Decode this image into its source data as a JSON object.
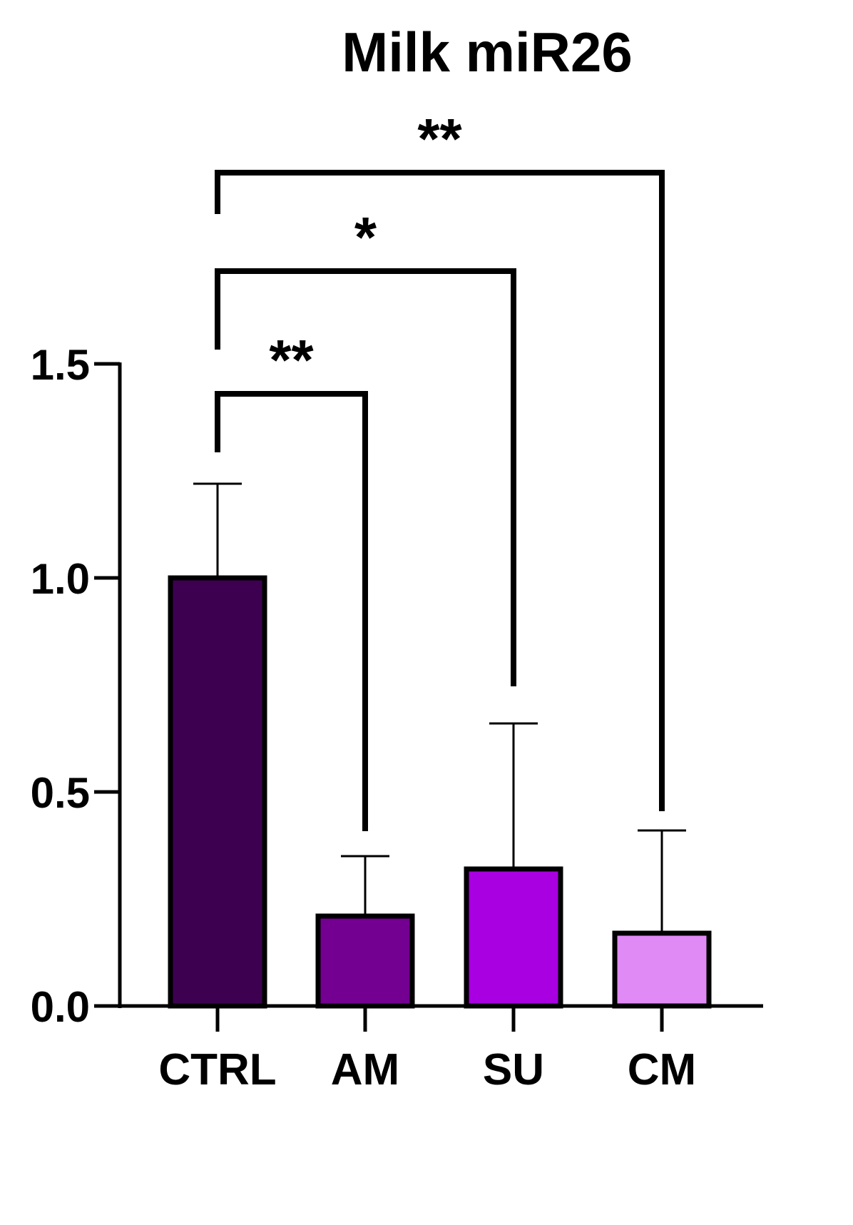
{
  "chart_data": {
    "type": "bar",
    "title": "Milk miR26",
    "xlabel": "",
    "ylabel": "",
    "categories": [
      "CTRL",
      "AM",
      "SU",
      "CM"
    ],
    "values": [
      1.0,
      0.21,
      0.32,
      0.17
    ],
    "error_upper": [
      1.22,
      0.35,
      0.66,
      0.41
    ],
    "colors": [
      "#3d0050",
      "#730090",
      "#a800e0",
      "#e08af5"
    ],
    "ylim": [
      0,
      1.5
    ],
    "yticks": [
      "0.0",
      "0.5",
      "1.0",
      "1.5"
    ],
    "grid": false,
    "legend": "none",
    "significance": [
      {
        "from": "CTRL",
        "to": "AM",
        "label": "**"
      },
      {
        "from": "CTRL",
        "to": "SU",
        "label": "*"
      },
      {
        "from": "CTRL",
        "to": "CM",
        "label": "**"
      }
    ]
  }
}
